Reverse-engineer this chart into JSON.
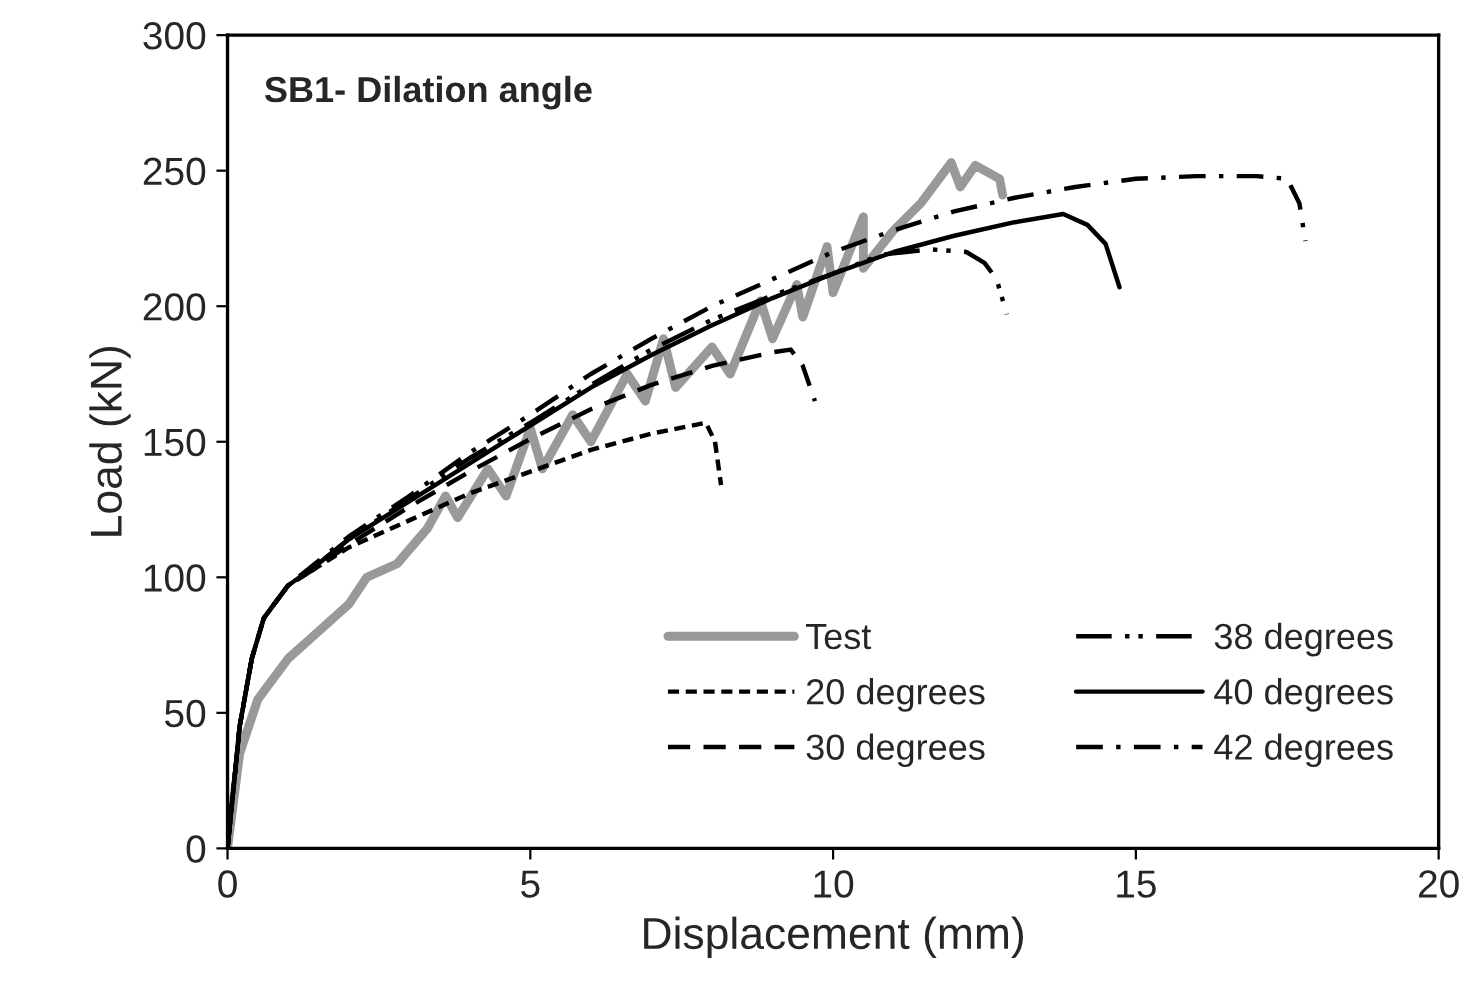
{
  "chart_data": {
    "type": "line",
    "xlabel": "Displacement (mm)",
    "ylabel": "Load (kN)",
    "annotations": [
      "SB1- Dilation angle"
    ],
    "xlim": [
      0,
      20
    ],
    "xticks": [
      0,
      5,
      10,
      15,
      20
    ],
    "ylim": [
      0,
      300
    ],
    "yticks": [
      0,
      50,
      100,
      150,
      200,
      250,
      300
    ],
    "grid": false,
    "legend": "bottom right",
    "marker": "none",
    "series": [
      {
        "name": "Test",
        "color": "#999999",
        "line_style": "solid",
        "x": [
          0,
          0.2,
          0.5,
          1,
          1.5,
          2,
          2.3,
          2.8,
          3.3,
          3.6,
          3.8,
          4.3,
          4.6,
          5.0,
          5.2,
          5.7,
          6.0,
          6.6,
          6.9,
          7.2,
          7.4,
          8.0,
          8.3,
          8.8,
          9.0,
          9.4,
          9.5,
          9.9,
          10.0,
          10.5,
          10.5,
          11.0,
          11.45,
          11.95,
          12.1,
          12.35,
          12.75,
          12.8
        ],
        "values": [
          0,
          35,
          55,
          70,
          80,
          90,
          100,
          105,
          118,
          130,
          122,
          140,
          130,
          155,
          140,
          160,
          150,
          175,
          165,
          188,
          170,
          185,
          175,
          202,
          188,
          208,
          196,
          222,
          205,
          233,
          214,
          228,
          238,
          253,
          244,
          252,
          247,
          241
        ]
      },
      {
        "name": "20 degrees",
        "color": "#000000",
        "line_style": "dotted",
        "x": [
          0,
          0.2,
          0.4,
          0.6,
          1.0,
          1.5,
          2,
          3,
          4,
          5,
          6,
          7,
          7.9,
          8.05,
          8.15
        ],
        "values": [
          0,
          45,
          70,
          85,
          97,
          104,
          111,
          121,
          131,
          139,
          147,
          153,
          157,
          150,
          134
        ]
      },
      {
        "name": "30 degrees",
        "color": "#000000",
        "line_style": "dashed",
        "x": [
          0,
          0.2,
          0.4,
          0.6,
          1.0,
          1.5,
          2,
          3,
          4,
          5,
          6,
          7,
          8,
          9,
          9.3,
          9.5,
          9.7
        ],
        "values": [
          0,
          45,
          70,
          85,
          97,
          104,
          112,
          126,
          139,
          151,
          162,
          171,
          178,
          183,
          184,
          178,
          165
        ]
      },
      {
        "name": "38 degrees",
        "color": "#000000",
        "line_style": "dashdotdot",
        "x": [
          0,
          0.2,
          0.4,
          0.6,
          1.0,
          1.5,
          2,
          3,
          4,
          5,
          6,
          7,
          8,
          9,
          10,
          10.8,
          11.6,
          12.2,
          12.5,
          12.7,
          12.87
        ],
        "values": [
          0,
          45,
          70,
          85,
          97,
          105,
          114,
          129,
          144,
          157,
          171,
          184,
          195,
          204,
          212,
          219,
          221,
          220,
          216,
          210,
          197
        ]
      },
      {
        "name": "40 degrees",
        "color": "#000000",
        "line_style": "solid",
        "x": [
          0,
          0.2,
          0.4,
          0.6,
          1.0,
          1.5,
          2,
          3,
          4,
          5,
          6,
          7,
          8,
          9,
          10,
          11,
          12,
          13,
          13.8,
          14.2,
          14.5,
          14.73
        ],
        "values": [
          0,
          45,
          70,
          85,
          97,
          105,
          114,
          128,
          142,
          156,
          170,
          182,
          193,
          203,
          212,
          220,
          226,
          231,
          234,
          230,
          223,
          207
        ]
      },
      {
        "name": "42 degrees",
        "color": "#000000",
        "line_style": "dashdot",
        "x": [
          0,
          0.2,
          0.4,
          0.6,
          1.0,
          1.5,
          2,
          3,
          4,
          5,
          6,
          7,
          8,
          9,
          10,
          11,
          12,
          13,
          14,
          15,
          16,
          17,
          17.5,
          17.7,
          17.8
        ],
        "values": [
          0,
          45,
          70,
          85,
          97,
          106,
          115,
          130,
          146,
          160,
          175,
          188,
          200,
          210,
          220,
          228,
          235,
          240,
          244,
          247,
          248,
          248,
          247,
          238,
          224
        ]
      }
    ]
  }
}
